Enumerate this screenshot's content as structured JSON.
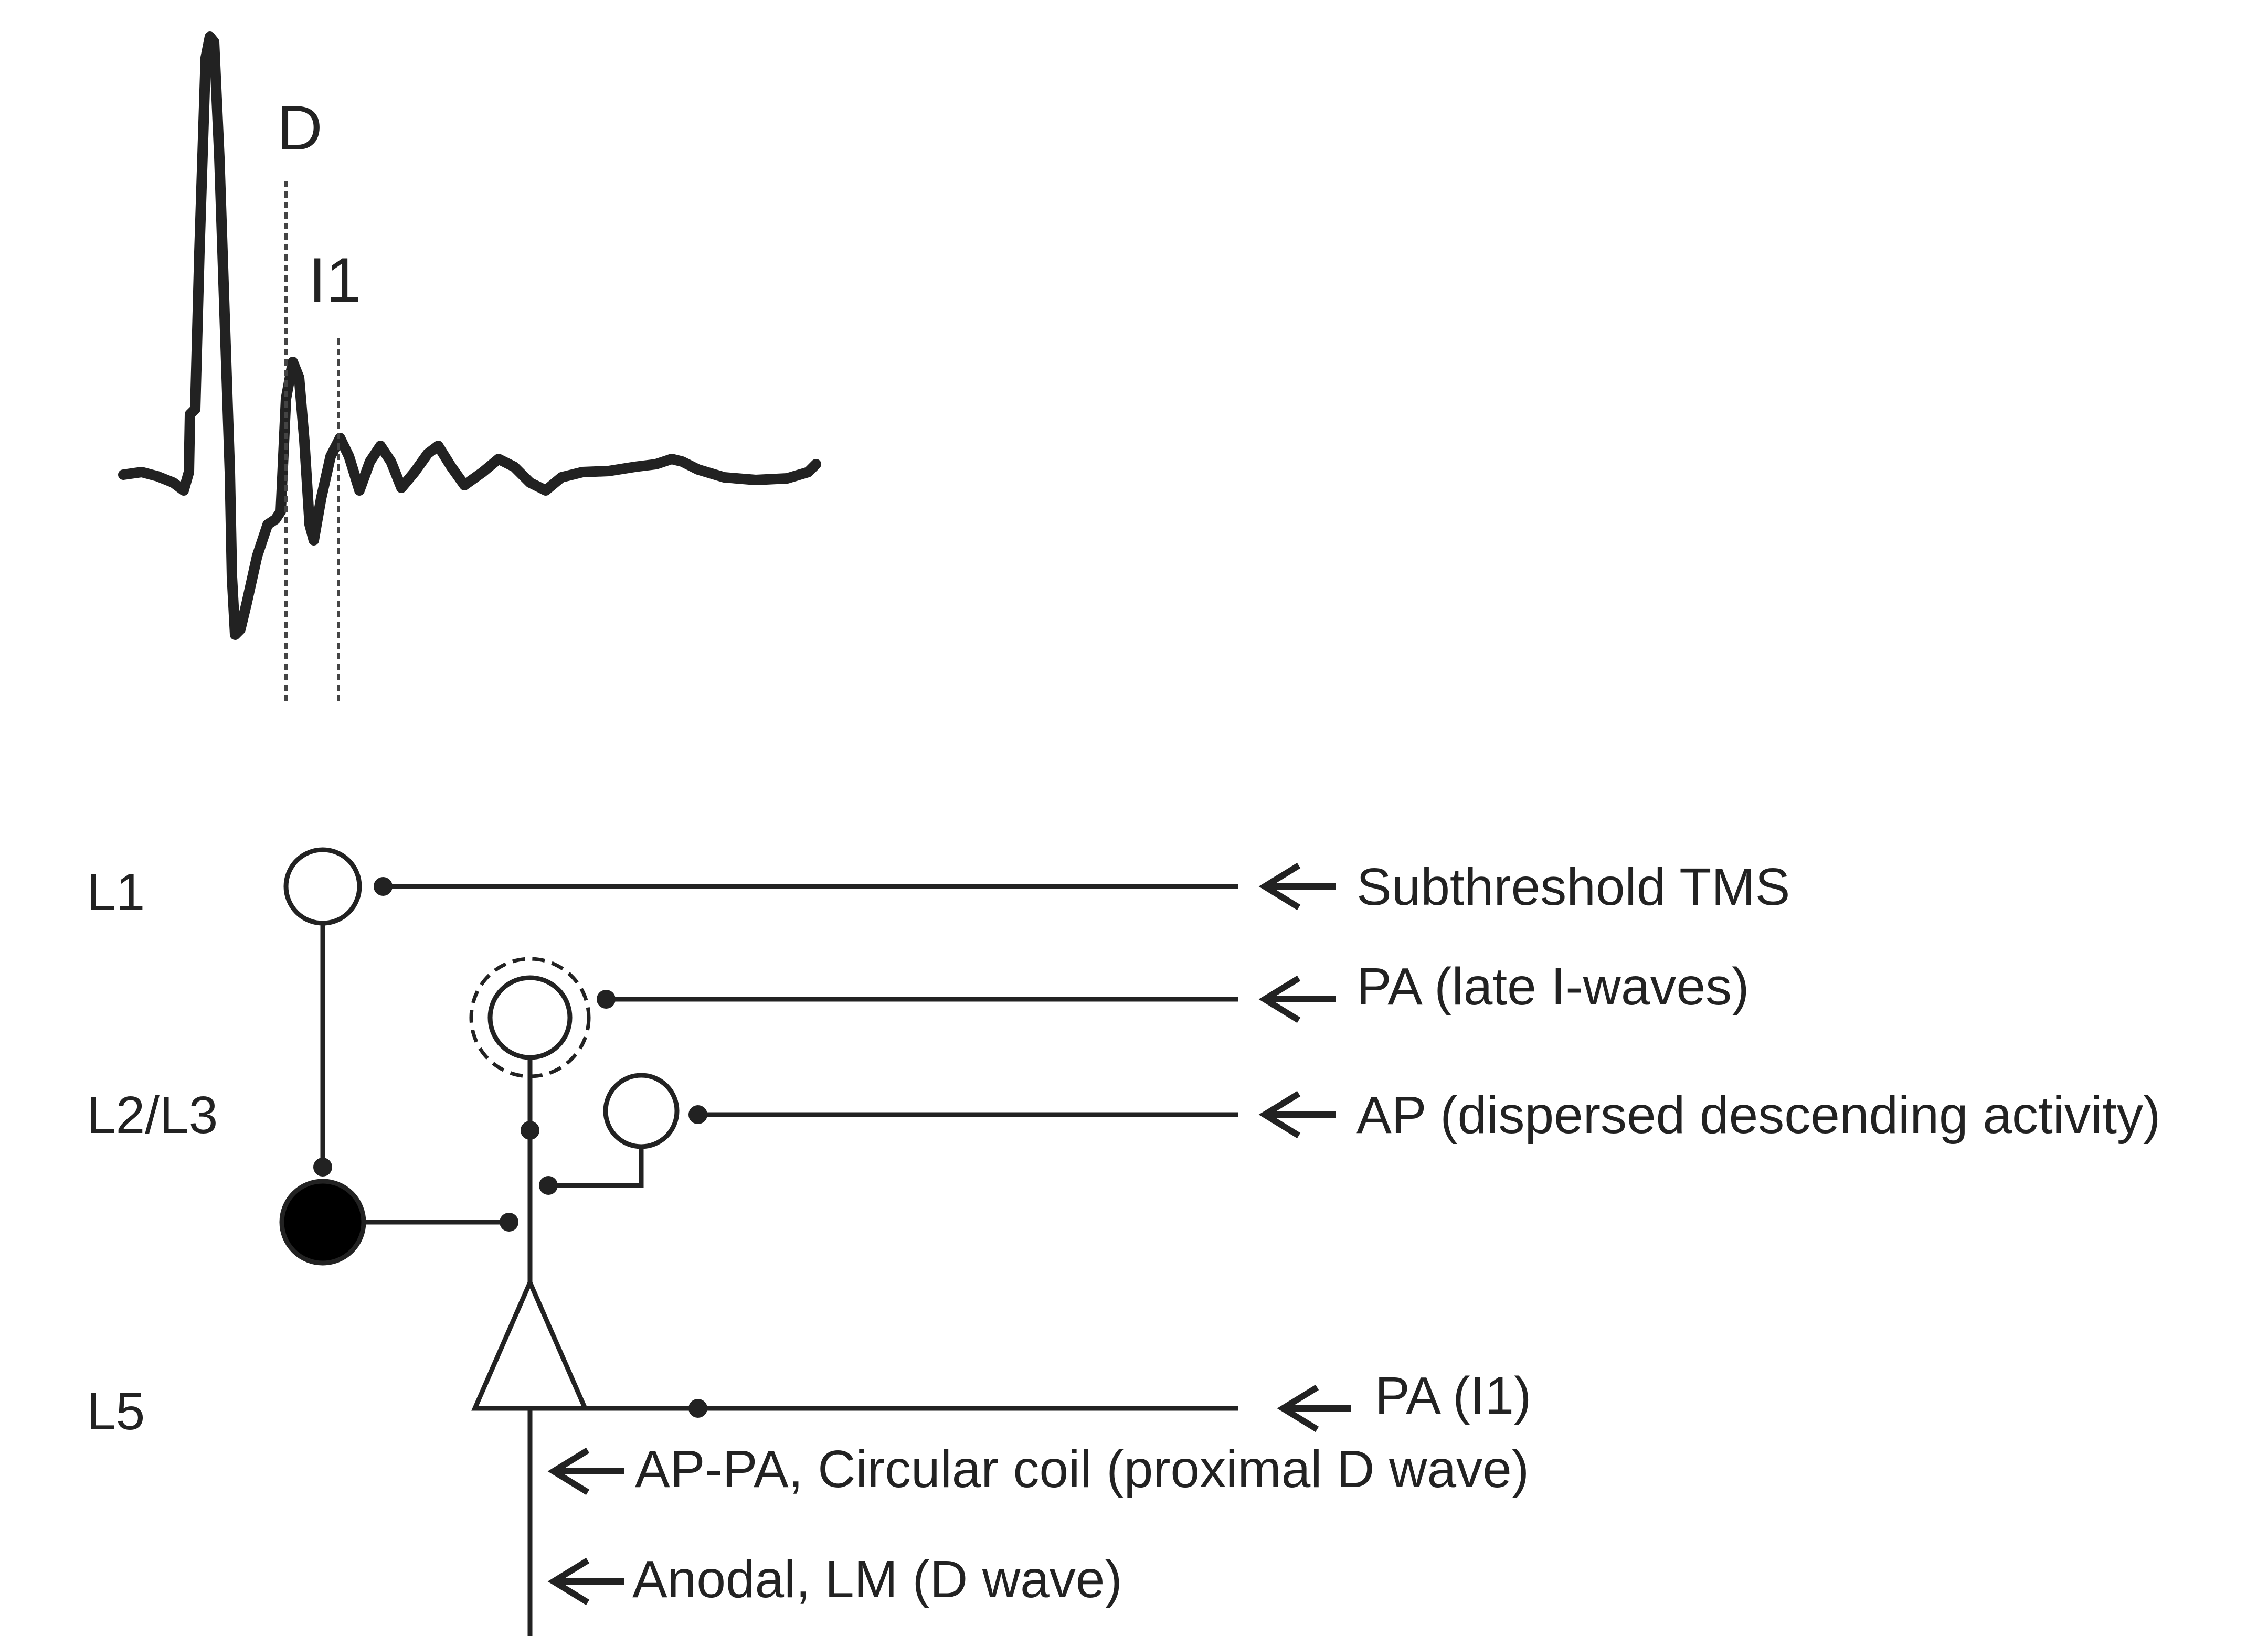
{
  "waveform": {
    "description_free": true,
    "peak_labels": {
      "d": "D",
      "i1": "I1"
    }
  },
  "layers": {
    "l1": "L1",
    "l2l3": "L2/L3",
    "l5": "L5"
  },
  "inputs": {
    "subthreshold_tms": "Subthreshold TMS",
    "pa_late_i_waves": "PA (late I-waves)",
    "ap_dispersed": "AP (dispersed descending activity)",
    "pa_i1": "PA (I1)",
    "ap_pa_circular": "AP-PA, Circular coil (proximal D wave)",
    "anodal_lm": "Anodal, LM (D wave)"
  },
  "colors": {
    "ink": "#222222",
    "inhibitory_interneuron_fill": "#000000",
    "excitatory_interneuron_fill": "#ffffff",
    "background": "#ffffff"
  }
}
